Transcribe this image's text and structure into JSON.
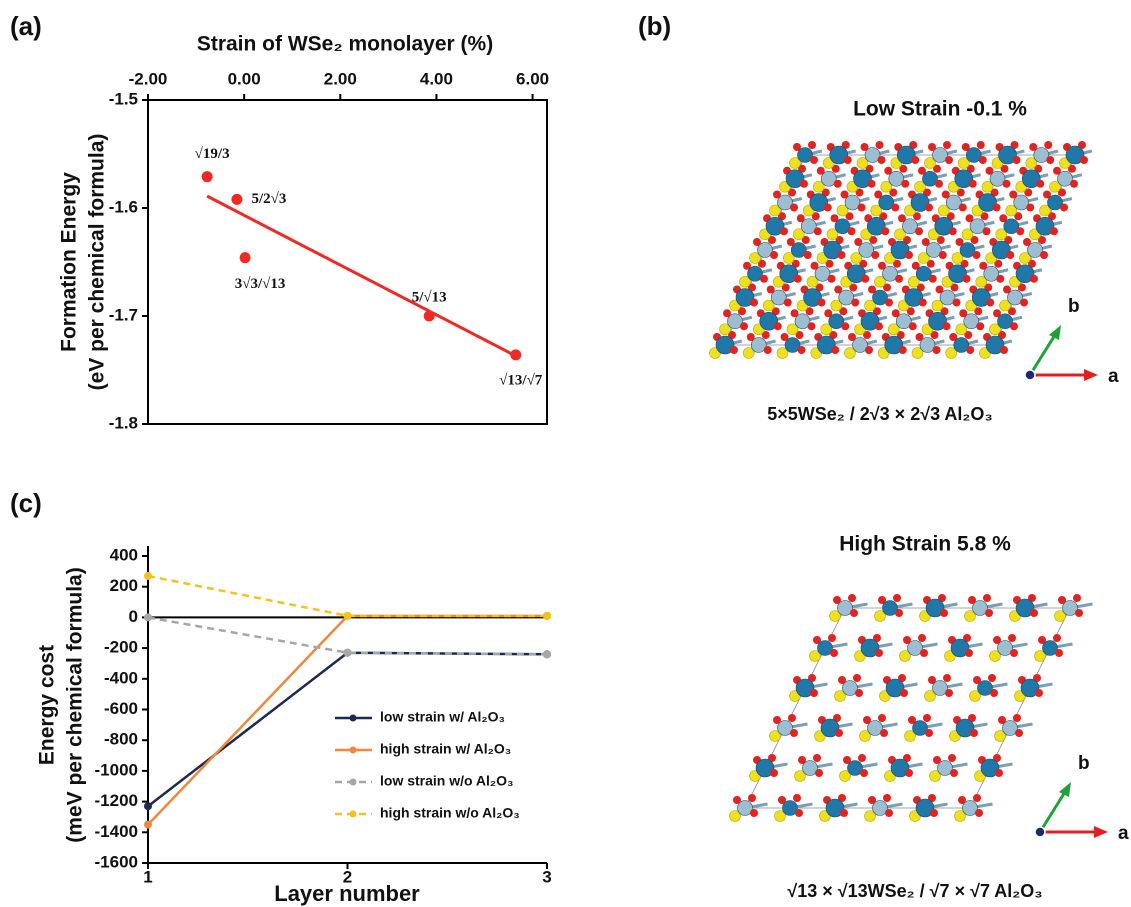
{
  "panel_labels": [
    "(a)",
    "(b)",
    "(c)"
  ],
  "chart_data": [
    {
      "type": "scatter",
      "xlabel": "Strain of WSe₂ monolayer (%)",
      "ylabel": [
        "Formation Energy",
        "(eV per chemical formula)"
      ],
      "x": [
        -0.77,
        -0.15,
        0.02,
        3.85,
        5.65
      ],
      "y": [
        -1.571,
        -1.592,
        -1.646,
        -1.7,
        -1.736
      ],
      "point_labels": [
        "√19/3",
        "5/2√3",
        "3√3/√13",
        "5/√13",
        "√13/√7"
      ],
      "color": "#ee2a24",
      "trend_line": {
        "x": [
          -0.77,
          5.65
        ],
        "y": [
          -1.589,
          -1.737
        ],
        "color": "#ee2a24"
      },
      "xlim": [
        -2,
        6.3
      ],
      "xticks": [
        {
          "value": -2,
          "label": "-2.00"
        },
        {
          "value": 0,
          "label": "0.00"
        },
        {
          "value": 2,
          "label": "2.00"
        },
        {
          "value": 4,
          "label": "4.00"
        },
        {
          "value": 6,
          "label": "6.00"
        }
      ],
      "ylim": [
        -1.8,
        -1.5
      ],
      "yticks": [
        -1.5,
        -1.6,
        -1.7,
        -1.8
      ]
    },
    {
      "type": "line",
      "xlabel": "Layer number",
      "ylabel": [
        "Energy cost",
        "(meV per chemical formula)"
      ],
      "x": [
        1,
        2,
        3
      ],
      "series": [
        {
          "name": "low strain w/ Al₂O₃",
          "color": "#1b2a4e",
          "dashed": false,
          "values": [
            -1230,
            -230,
            -240
          ]
        },
        {
          "name": "high strain w/ Al₂O₃",
          "color": "#f0873a",
          "dashed": false,
          "values": [
            -1350,
            10,
            10
          ]
        },
        {
          "name": "low strain w/o Al₂O₃",
          "color": "#a6a6a6",
          "dashed": true,
          "values": [
            0,
            -230,
            -240
          ]
        },
        {
          "name": "high strain w/o Al₂O₃",
          "color": "#f5c21b",
          "dashed": true,
          "values": [
            270,
            10,
            10
          ]
        }
      ],
      "xlim": [
        1,
        3
      ],
      "xticks": [
        1,
        2,
        3
      ],
      "ylim": [
        -1600,
        400
      ],
      "yticks": [
        400,
        200,
        0,
        -200,
        -400,
        -600,
        -800,
        -1000,
        -1200,
        -1400,
        -1600
      ]
    }
  ],
  "structures": [
    {
      "title": "Low Strain -0.1 %",
      "caption": "5×5WSe₂ / 2√3 × 2√3 Al₂O₃",
      "axes": [
        "a",
        "b"
      ]
    },
    {
      "title": "High Strain 5.8 %",
      "caption": "√13 × √13WSe₂ / √7 × √7 Al₂O₃",
      "axes": [
        "a",
        "b"
      ]
    }
  ]
}
